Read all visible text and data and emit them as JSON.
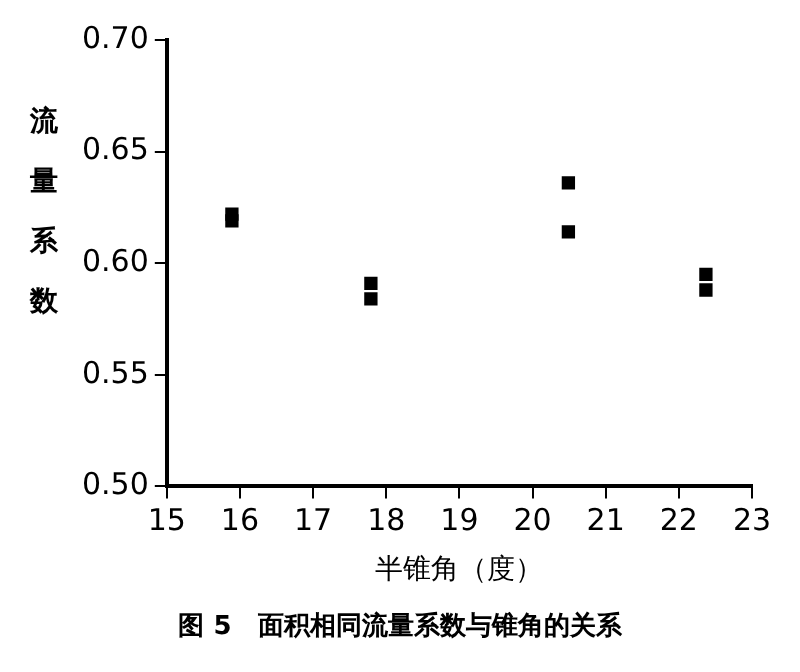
{
  "chart_data": {
    "type": "scatter",
    "xlabel": "半锥角（度）",
    "ylabel": "流量系数",
    "annotations": [
      "图 5　面积相同流量系数与锥角的关系"
    ],
    "series": [
      {
        "color": "#000000",
        "x": [
          15.89,
          15.89,
          17.79,
          17.79,
          20.49,
          20.49,
          22.37,
          22.37
        ],
        "values": [
          0.622,
          0.619,
          0.591,
          0.584,
          0.636,
          0.614,
          0.595,
          0.588
        ]
      }
    ],
    "xlim": [
      15,
      23
    ],
    "xticks": [
      15,
      16,
      17,
      18,
      19,
      20,
      21,
      22,
      23
    ],
    "ylim": [
      0.5,
      0.7
    ],
    "yticks": [
      {
        "value": 0.5,
        "label": "0.50"
      },
      {
        "value": 0.55,
        "label": "0.55"
      },
      {
        "value": 0.6,
        "label": "0.60"
      },
      {
        "value": 0.65,
        "label": "0.65"
      },
      {
        "value": 0.7,
        "label": "0.70"
      }
    ],
    "grid": false,
    "legend": false,
    "marker": "square"
  }
}
